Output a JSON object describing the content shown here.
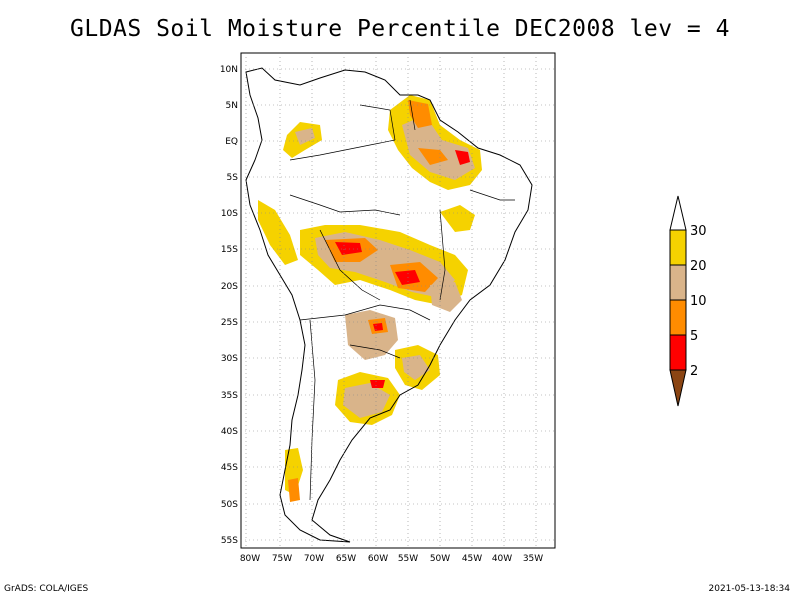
{
  "title": "GLDAS Soil Moisture Percentile DEC2008 lev = 4",
  "map": {
    "region": "South America",
    "lon_range": [
      -80,
      -30
    ],
    "lat_range": [
      -55,
      10
    ],
    "lat_labels": [
      "10N",
      "5N",
      "EQ",
      "5S",
      "10S",
      "15S",
      "20S",
      "25S",
      "30S",
      "35S",
      "40S",
      "45S",
      "50S",
      "55S"
    ],
    "lon_labels": [
      "80W",
      "75W",
      "70W",
      "65W",
      "60W",
      "55W",
      "50W",
      "45W",
      "40W",
      "35W"
    ],
    "grid": "dotted"
  },
  "legend": {
    "labels": [
      "30",
      "20",
      "10",
      "5",
      "2"
    ],
    "colors": [
      "#ffffff",
      "#f5d200",
      "#d9b48a",
      "#ff8c00",
      "#ff0000",
      "#8b4513"
    ],
    "bins": [
      "> 30",
      "20–30",
      "10–20",
      "5–10",
      "2–5",
      "< 2"
    ]
  },
  "footer": {
    "left": "GrADS: COLA/IGES",
    "right": "2021-05-13-18:34"
  }
}
